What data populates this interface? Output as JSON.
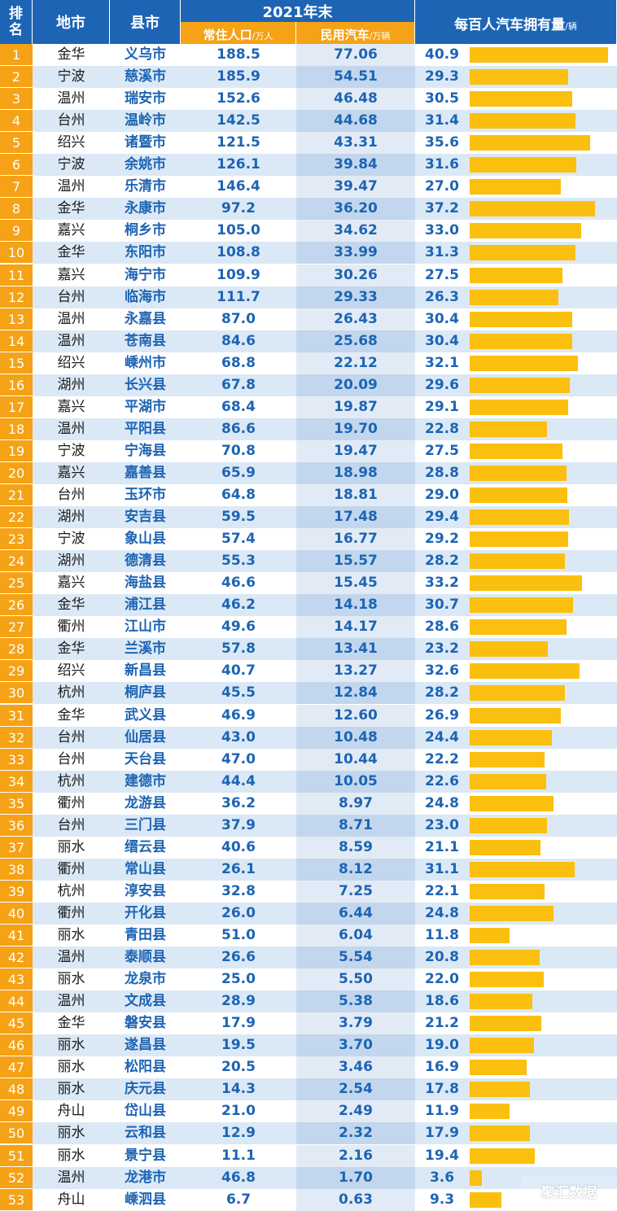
{
  "header": {
    "rank": "排名",
    "city": "地市",
    "county": "县市",
    "group": "2021年末",
    "pop_label": "常住人口",
    "pop_unit": "/万人",
    "cars_label": "民用汽车",
    "cars_unit": "/万辆",
    "own_label": "每百人汽车拥有量",
    "own_unit": "/辆"
  },
  "watermark": "聚汇数据",
  "colors": {
    "header_blue": "#1d64b4",
    "header_orange": "#f5a216",
    "bar": "#fbbf10",
    "row_alt": "#dbe9f6"
  },
  "chart_data": {
    "type": "table",
    "columns": [
      "排名",
      "地市",
      "县市",
      "常住人口/万人",
      "民用汽车/万辆",
      "每百人汽车拥有量/辆"
    ],
    "bar_column": "每百人汽车拥有量/辆",
    "bar_max": 41,
    "rows": [
      {
        "rank": "1",
        "city": "金华",
        "county": "义乌市",
        "pop": "188.5",
        "cars": "77.06",
        "own": "40.9"
      },
      {
        "rank": "2",
        "city": "宁波",
        "county": "慈溪市",
        "pop": "185.9",
        "cars": "54.51",
        "own": "29.3"
      },
      {
        "rank": "3",
        "city": "温州",
        "county": "瑞安市",
        "pop": "152.6",
        "cars": "46.48",
        "own": "30.5"
      },
      {
        "rank": "4",
        "city": "台州",
        "county": "温岭市",
        "pop": "142.5",
        "cars": "44.68",
        "own": "31.4"
      },
      {
        "rank": "5",
        "city": "绍兴",
        "county": "诸暨市",
        "pop": "121.5",
        "cars": "43.31",
        "own": "35.6"
      },
      {
        "rank": "6",
        "city": "宁波",
        "county": "余姚市",
        "pop": "126.1",
        "cars": "39.84",
        "own": "31.6"
      },
      {
        "rank": "7",
        "city": "温州",
        "county": "乐清市",
        "pop": "146.4",
        "cars": "39.47",
        "own": "27.0"
      },
      {
        "rank": "8",
        "city": "金华",
        "county": "永康市",
        "pop": "97.2",
        "cars": "36.20",
        "own": "37.2"
      },
      {
        "rank": "9",
        "city": "嘉兴",
        "county": "桐乡市",
        "pop": "105.0",
        "cars": "34.62",
        "own": "33.0"
      },
      {
        "rank": "10",
        "city": "金华",
        "county": "东阳市",
        "pop": "108.8",
        "cars": "33.99",
        "own": "31.3"
      },
      {
        "rank": "11",
        "city": "嘉兴",
        "county": "海宁市",
        "pop": "109.9",
        "cars": "30.26",
        "own": "27.5"
      },
      {
        "rank": "12",
        "city": "台州",
        "county": "临海市",
        "pop": "111.7",
        "cars": "29.33",
        "own": "26.3"
      },
      {
        "rank": "13",
        "city": "温州",
        "county": "永嘉县",
        "pop": "87.0",
        "cars": "26.43",
        "own": "30.4"
      },
      {
        "rank": "14",
        "city": "温州",
        "county": "苍南县",
        "pop": "84.6",
        "cars": "25.68",
        "own": "30.4"
      },
      {
        "rank": "15",
        "city": "绍兴",
        "county": "嵊州市",
        "pop": "68.8",
        "cars": "22.12",
        "own": "32.1"
      },
      {
        "rank": "16",
        "city": "湖州",
        "county": "长兴县",
        "pop": "67.8",
        "cars": "20.09",
        "own": "29.6"
      },
      {
        "rank": "17",
        "city": "嘉兴",
        "county": "平湖市",
        "pop": "68.4",
        "cars": "19.87",
        "own": "29.1"
      },
      {
        "rank": "18",
        "city": "温州",
        "county": "平阳县",
        "pop": "86.6",
        "cars": "19.70",
        "own": "22.8"
      },
      {
        "rank": "19",
        "city": "宁波",
        "county": "宁海县",
        "pop": "70.8",
        "cars": "19.47",
        "own": "27.5"
      },
      {
        "rank": "20",
        "city": "嘉兴",
        "county": "嘉善县",
        "pop": "65.9",
        "cars": "18.98",
        "own": "28.8"
      },
      {
        "rank": "21",
        "city": "台州",
        "county": "玉环市",
        "pop": "64.8",
        "cars": "18.81",
        "own": "29.0"
      },
      {
        "rank": "22",
        "city": "湖州",
        "county": "安吉县",
        "pop": "59.5",
        "cars": "17.48",
        "own": "29.4"
      },
      {
        "rank": "23",
        "city": "宁波",
        "county": "象山县",
        "pop": "57.4",
        "cars": "16.77",
        "own": "29.2"
      },
      {
        "rank": "24",
        "city": "湖州",
        "county": "德清县",
        "pop": "55.3",
        "cars": "15.57",
        "own": "28.2"
      },
      {
        "rank": "25",
        "city": "嘉兴",
        "county": "海盐县",
        "pop": "46.6",
        "cars": "15.45",
        "own": "33.2"
      },
      {
        "rank": "26",
        "city": "金华",
        "county": "浦江县",
        "pop": "46.2",
        "cars": "14.18",
        "own": "30.7"
      },
      {
        "rank": "27",
        "city": "衢州",
        "county": "江山市",
        "pop": "49.6",
        "cars": "14.17",
        "own": "28.6"
      },
      {
        "rank": "28",
        "city": "金华",
        "county": "兰溪市",
        "pop": "57.8",
        "cars": "13.41",
        "own": "23.2"
      },
      {
        "rank": "29",
        "city": "绍兴",
        "county": "新昌县",
        "pop": "40.7",
        "cars": "13.27",
        "own": "32.6"
      },
      {
        "rank": "30",
        "city": "杭州",
        "county": "桐庐县",
        "pop": "45.5",
        "cars": "12.84",
        "own": "28.2"
      },
      {
        "rank": "31",
        "city": "金华",
        "county": "武义县",
        "pop": "46.9",
        "cars": "12.60",
        "own": "26.9"
      },
      {
        "rank": "32",
        "city": "台州",
        "county": "仙居县",
        "pop": "43.0",
        "cars": "10.48",
        "own": "24.4"
      },
      {
        "rank": "33",
        "city": "台州",
        "county": "天台县",
        "pop": "47.0",
        "cars": "10.44",
        "own": "22.2"
      },
      {
        "rank": "34",
        "city": "杭州",
        "county": "建德市",
        "pop": "44.4",
        "cars": "10.05",
        "own": "22.6"
      },
      {
        "rank": "35",
        "city": "衢州",
        "county": "龙游县",
        "pop": "36.2",
        "cars": "8.97",
        "own": "24.8"
      },
      {
        "rank": "36",
        "city": "台州",
        "county": "三门县",
        "pop": "37.9",
        "cars": "8.71",
        "own": "23.0"
      },
      {
        "rank": "37",
        "city": "丽水",
        "county": "缙云县",
        "pop": "40.6",
        "cars": "8.59",
        "own": "21.1"
      },
      {
        "rank": "38",
        "city": "衢州",
        "county": "常山县",
        "pop": "26.1",
        "cars": "8.12",
        "own": "31.1"
      },
      {
        "rank": "39",
        "city": "杭州",
        "county": "淳安县",
        "pop": "32.8",
        "cars": "7.25",
        "own": "22.1"
      },
      {
        "rank": "40",
        "city": "衢州",
        "county": "开化县",
        "pop": "26.0",
        "cars": "6.44",
        "own": "24.8"
      },
      {
        "rank": "41",
        "city": "丽水",
        "county": "青田县",
        "pop": "51.0",
        "cars": "6.04",
        "own": "11.8"
      },
      {
        "rank": "42",
        "city": "温州",
        "county": "泰顺县",
        "pop": "26.6",
        "cars": "5.54",
        "own": "20.8"
      },
      {
        "rank": "43",
        "city": "丽水",
        "county": "龙泉市",
        "pop": "25.0",
        "cars": "5.50",
        "own": "22.0"
      },
      {
        "rank": "44",
        "city": "温州",
        "county": "文成县",
        "pop": "28.9",
        "cars": "5.38",
        "own": "18.6"
      },
      {
        "rank": "45",
        "city": "金华",
        "county": "磐安县",
        "pop": "17.9",
        "cars": "3.79",
        "own": "21.2"
      },
      {
        "rank": "46",
        "city": "丽水",
        "county": "遂昌县",
        "pop": "19.5",
        "cars": "3.70",
        "own": "19.0"
      },
      {
        "rank": "47",
        "city": "丽水",
        "county": "松阳县",
        "pop": "20.5",
        "cars": "3.46",
        "own": "16.9"
      },
      {
        "rank": "48",
        "city": "丽水",
        "county": "庆元县",
        "pop": "14.3",
        "cars": "2.54",
        "own": "17.8"
      },
      {
        "rank": "49",
        "city": "舟山",
        "county": "岱山县",
        "pop": "21.0",
        "cars": "2.49",
        "own": "11.9"
      },
      {
        "rank": "50",
        "city": "丽水",
        "county": "云和县",
        "pop": "12.9",
        "cars": "2.32",
        "own": "17.9"
      },
      {
        "rank": "51",
        "city": "丽水",
        "county": "景宁县",
        "pop": "11.1",
        "cars": "2.16",
        "own": "19.4"
      },
      {
        "rank": "52",
        "city": "温州",
        "county": "龙港市",
        "pop": "46.8",
        "cars": "1.70",
        "own": "3.6"
      },
      {
        "rank": "53",
        "city": "舟山",
        "county": "嵊泗县",
        "pop": "6.7",
        "cars": "0.63",
        "own": "9.3"
      }
    ]
  }
}
